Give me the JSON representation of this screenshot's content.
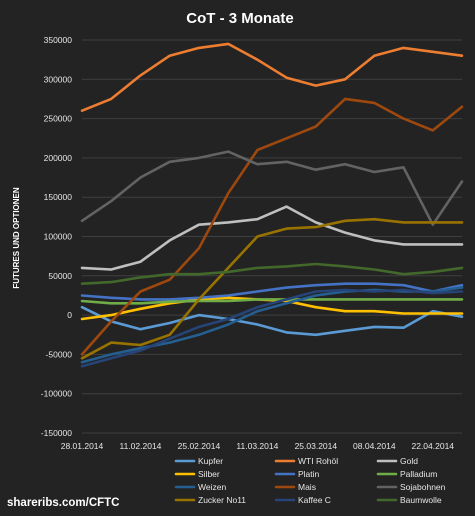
{
  "chart_data": {
    "type": "line",
    "title": "CoT - 3 Monate",
    "xlabel": "",
    "ylabel": "FUTURES UND OPTIONEN",
    "ylim": [
      -150000,
      350000
    ],
    "y_ticks": [
      350000,
      300000,
      250000,
      200000,
      150000,
      100000,
      50000,
      0,
      -50000,
      -100000,
      -150000
    ],
    "x_tick_labels": [
      "28.01.2014",
      "11.02.2014",
      "25.02.2014",
      "11.03.2014",
      "25.03.2014",
      "08.04.2014",
      "22.04.2014"
    ],
    "x": [
      "28.01.2014",
      "04.02.2014",
      "11.02.2014",
      "18.02.2014",
      "25.02.2014",
      "04.03.2014",
      "11.03.2014",
      "18.03.2014",
      "25.03.2014",
      "01.04.2014",
      "08.04.2014",
      "15.04.2014",
      "22.04.2014",
      "29.04.2014"
    ],
    "grid": true,
    "legend_position": "bottom",
    "series": [
      {
        "name": "Kupfer",
        "color": "#5b9bd5",
        "values": [
          10000,
          -8000,
          -18000,
          -10000,
          0,
          -5000,
          -12000,
          -22000,
          -25000,
          -20000,
          -15000,
          -16000,
          5000,
          -2000
        ]
      },
      {
        "name": "WTI Rohöl",
        "color": "#ed7d31",
        "values": [
          260000,
          275000,
          305000,
          330000,
          340000,
          345000,
          325000,
          302000,
          292000,
          300000,
          330000,
          340000,
          335000,
          330000
        ]
      },
      {
        "name": "Gold",
        "color": "#bfbfbf",
        "values": [
          60000,
          58000,
          68000,
          95000,
          115000,
          118000,
          122000,
          138000,
          118000,
          105000,
          95000,
          90000,
          90000,
          90000
        ]
      },
      {
        "name": "Silber",
        "color": "#ffc000",
        "values": [
          -5000,
          0,
          8000,
          15000,
          20000,
          22000,
          20000,
          18000,
          10000,
          5000,
          5000,
          2000,
          2000,
          2000
        ]
      },
      {
        "name": "Platin",
        "color": "#4472c4",
        "values": [
          25000,
          22000,
          20000,
          20000,
          22000,
          25000,
          30000,
          35000,
          38000,
          40000,
          40000,
          38000,
          30000,
          38000
        ]
      },
      {
        "name": "Palladium",
        "color": "#70ad47",
        "values": [
          18000,
          15000,
          15000,
          17000,
          18000,
          18000,
          20000,
          20000,
          20000,
          20000,
          20000,
          20000,
          20000,
          20000
        ]
      },
      {
        "name": "Weizen",
        "color": "#255e91",
        "values": [
          -60000,
          -50000,
          -42000,
          -35000,
          -25000,
          -12000,
          5000,
          15000,
          25000,
          30000,
          32000,
          30000,
          30000,
          35000
        ]
      },
      {
        "name": "Mais",
        "color": "#9e480e",
        "values": [
          -50000,
          -8000,
          30000,
          45000,
          85000,
          155000,
          210000,
          225000,
          240000,
          275000,
          270000,
          250000,
          235000,
          265000
        ]
      },
      {
        "name": "Sojabohnen",
        "color": "#636363",
        "values": [
          120000,
          145000,
          175000,
          195000,
          200000,
          208000,
          192000,
          195000,
          185000,
          192000,
          182000,
          188000,
          115000,
          170000
        ]
      },
      {
        "name": "Zucker No11",
        "color": "#997300",
        "values": [
          -55000,
          -35000,
          -38000,
          -25000,
          20000,
          60000,
          100000,
          110000,
          112000,
          120000,
          122000,
          118000,
          118000,
          118000
        ]
      },
      {
        "name": "Kaffee C",
        "color": "#264478",
        "values": [
          -65000,
          -55000,
          -45000,
          -30000,
          -15000,
          -5000,
          10000,
          20000,
          30000,
          32000,
          30000,
          32000,
          28000,
          30000
        ]
      },
      {
        "name": "Baumwolle",
        "color": "#43682b",
        "values": [
          40000,
          42000,
          48000,
          52000,
          52000,
          55000,
          60000,
          62000,
          65000,
          62000,
          58000,
          52000,
          55000,
          60000
        ]
      }
    ]
  },
  "footer": {
    "credit": "shareribs.com/CFTC"
  }
}
